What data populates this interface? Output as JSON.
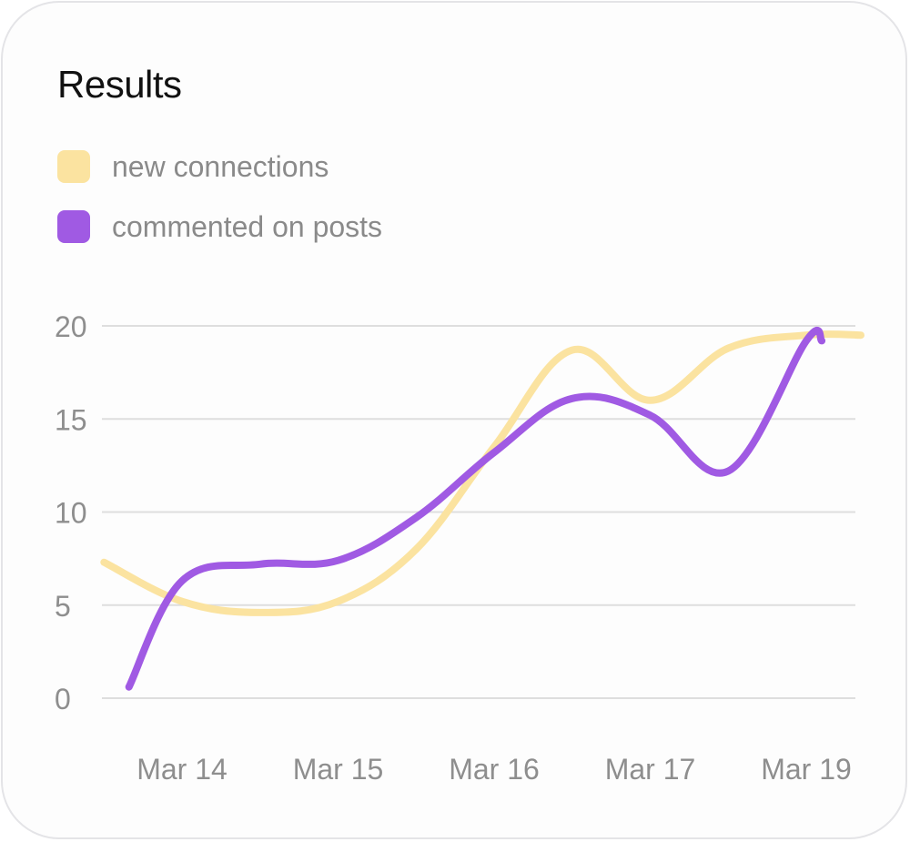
{
  "chart_data": {
    "type": "line",
    "title": "Results",
    "categories": [
      "Mar 14",
      "Mar 15",
      "Mar 16",
      "Mar 17",
      "Mar 19"
    ],
    "yticks": [
      0,
      5,
      10,
      15,
      20
    ],
    "ylim": [
      0,
      20
    ],
    "grid": true,
    "legend_position": "top-left",
    "series": [
      {
        "name": "new connections",
        "color": "#fbe3a0",
        "points": [
          [
            -0.5,
            7.3
          ],
          [
            0,
            5.2
          ],
          [
            0.5,
            4.6
          ],
          [
            1,
            5.2
          ],
          [
            1.5,
            8.0
          ],
          [
            2,
            13.5
          ],
          [
            2.5,
            18.7
          ],
          [
            3,
            16.0
          ],
          [
            3.5,
            18.8
          ],
          [
            4,
            19.5
          ],
          [
            4.35,
            19.5
          ]
        ]
      },
      {
        "name": "commented on posts",
        "color": "#a05ae3",
        "points": [
          [
            -0.34,
            0.6
          ],
          [
            0,
            6.3
          ],
          [
            0.5,
            7.2
          ],
          [
            1,
            7.4
          ],
          [
            1.5,
            9.7
          ],
          [
            2,
            13.2
          ],
          [
            2.5,
            16.1
          ],
          [
            3,
            15.2
          ],
          [
            3.5,
            12.2
          ],
          [
            4,
            19.2
          ],
          [
            4.1,
            19.2
          ]
        ]
      }
    ]
  }
}
